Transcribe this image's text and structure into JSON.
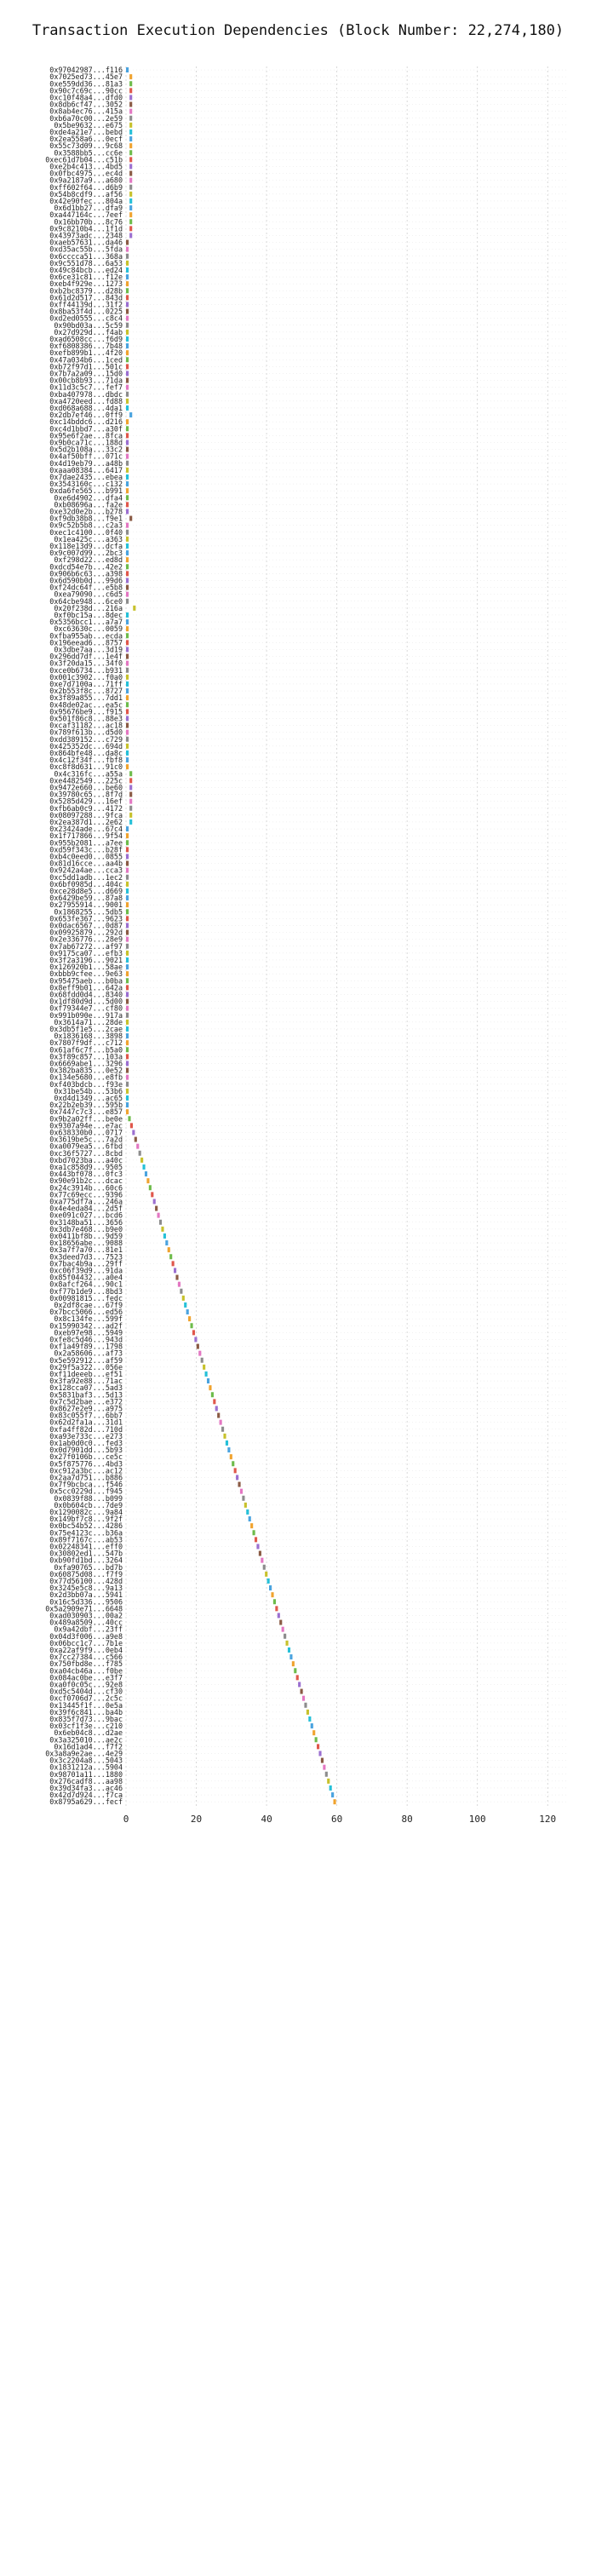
{
  "chart_data": {
    "type": "bar",
    "orientation": "horizontal",
    "title": "Transaction Execution Dependencies (Block Number: 22,274,180)",
    "xlim": [
      0,
      126
    ],
    "xticks": [
      0,
      20,
      40,
      60,
      80,
      100,
      120
    ],
    "grid": true,
    "colors": [
      "#4aa3df",
      "#f0a32f",
      "#6dbb4a",
      "#e0574b",
      "#9b6fd0",
      "#8a5a44",
      "#e377c2",
      "#8c8c8c",
      "#c7c12b",
      "#25c0d8"
    ],
    "transactions": [
      "0x97042987...f116",
      "0x7025ed73...45e7",
      "0xe559dd36...81a3",
      "0x90c7c69c...90cc",
      "0xc10f48a4...dfd0",
      "0x8db6cf47...3052",
      "0x8ab4ec76...415a",
      "0xb6a70c00...2e59",
      "0x5be9632...e675",
      "0xde4a21e7...bebd",
      "0x2ea558a6...0ecf",
      "0x55c73d09...9c68",
      "0x3588bb5...cc6e",
      "0xec61d7b04...c51b",
      "0xe2b4c413...4bd5",
      "0x0fbc4975...ec4d",
      "0x9a2187a9...a680",
      "0xff602f64...d6b9",
      "0x54b8cdf9...af56",
      "0x42e90fec...804a",
      "0x6d1bb27...dfa9",
      "0xa447164c...7eef",
      "0x16bb70b...8c76",
      "0x9c8210b4...1f1d",
      "0x43973adc...2348",
      "0xaeb57631...da46",
      "0xd35ac55b...5fda",
      "0x6cccca51...368a",
      "0x9c551d78...6a53",
      "0x49c84bcb...ed24",
      "0x6ce31c81...f12e",
      "0xeb4f929e...1273",
      "0xb2bc8379...d28b",
      "0x61d2d517...843d",
      "0xff44139d...31f2",
      "0x8ba53f4d...0225",
      "0xd2ed0555...c8c4",
      "0x90bd03a...5c59",
      "0x27d929d...f4ab",
      "0xad6508cc...f6d9",
      "0xf6808386...7b48",
      "0xefb899b1...4f20",
      "0x47a034b6...1ced",
      "0xb72f97d1...501c",
      "0x7b7a2a09...15d0",
      "0x00cb8b93...71da",
      "0x11d3c5c7...fef7",
      "0xba407978...dbdc",
      "0xa4720eed...fd88",
      "0xd068a688...4da1",
      "0x2db7ef46...0ff9",
      "0xc14bddc6...d216",
      "0xc4d1bbd7...a30f",
      "0x95e6f2ae...8fca",
      "0x9b0ca71c...188d",
      "0x5d2b108a...33c2",
      "0x4af50bff...071c",
      "0x4d19eb79...a48b",
      "0xaaa08384...6417",
      "0x7dae2435...ebea",
      "0x3543160c...c132",
      "0xda6fe565...b991",
      "0xe6d4902...dfa4",
      "0xb08696a...fa2e",
      "0xe32d0e2b...b278",
      "0xf9db38b8...f9e1",
      "0x9c52b5b8...c2a3",
      "0xec1c4100...0f40",
      "0x1ea425c...a363",
      "0x118e13d9...dcfa",
      "0x9c007d99...2bc3",
      "0xf298d22...ed8d",
      "0xdcd54e7b...42e2",
      "0x906b6c63...a398",
      "0x6d590b0d...99d6",
      "0xf24dc64f...e5b8",
      "0xea79090...c6d5",
      "0x64cbe948...6ce0",
      "0x20f238d...216a",
      "0xf0bc15a...8dec",
      "0x5356bcc1...a7a7",
      "0xc63630c...0059",
      "0xfba955ab...ecda",
      "0x196eead6...8757",
      "0x3dbe7aa...3d19",
      "0x296dd7df...1e4f",
      "0x3f20da15...34f0",
      "0xce0b6734...b931",
      "0x001c3902...f0a0",
      "0xe7d7100a...71ff",
      "0x2b553f8c...8727",
      "0x3f89a855...7dd1",
      "0x48de02ac...ea5c",
      "0x95676be9...f915",
      "0x501f86c8...88e3",
      "0xcaf31182...ac18",
      "0x789f613b...d5d0",
      "0xdd389152...c729",
      "0x425352dc...694d",
      "0x864bfe48...da8c",
      "0x4c12f34f...fbf8",
      "0xc8f8d631...91c0",
      "0x4c316fc...a55a",
      "0xe4482549...225c",
      "0x9472e660...be60",
      "0x39780c65...8f7d",
      "0x5285d429...16ef",
      "0xfb6ab0c9...4172",
      "0x08097288...9fca",
      "0x2ea387d1...2e62",
      "0x23424ade...67c4",
      "0x1f717866...9f54",
      "0x955b2081...a7ee",
      "0xd59f343c...b28f",
      "0xb4c0eed0...0855",
      "0x81d16cce...aa4b",
      "0x9242a4ae...cca3",
      "0xc5dd1adb...1ec2",
      "0x6bf0985d...404c",
      "0xce28d8e5...d669",
      "0x6429be59...87a8",
      "0x27955914...9001",
      "0x1868255...5db5",
      "0x653fe367...9623",
      "0x0dac6567...0d87",
      "0x09925879...292d",
      "0x2e336776...28e9",
      "0x7ab67272...af97",
      "0x9175ca07...efb3",
      "0x3f2a3196...9021",
      "0x126920b1...58ae",
      "0xbbb9cfee...9e63",
      "0x95475aeb...b0ba",
      "0x8eff9b01...642a",
      "0x68fdd0d4...8340",
      "0x1df80d9d...5d00",
      "0xf79344e7...cf80",
      "0x991b090e...917a",
      "0x3614a71...28de",
      "0x3db5f1e5...2cae",
      "0x1836168...3898",
      "0x7807f9df...c712",
      "0x61af6c7f...b5a0",
      "0x3f89c857...103a",
      "0x6669abe1...3296",
      "0x382ba835...0e52",
      "0x134e5680...e8fb",
      "0xf403bdcb...f93e",
      "0x31be54b...53b6",
      "0xd4d1349...ac65",
      "0x22b2eb39...595b",
      "0x7447c7c3...e857",
      "0x9b2a02ff...be0e",
      "0x9307a94e...e7ac",
      "0x638330b0...0717",
      "0x3619be5c...7a2d",
      "0xa0079ea5...6fbd",
      "0xc36f5727...8cbd",
      "0xbd7023ba...a40c",
      "0xa1c858d9...9505",
      "0x443bf078...0fc3",
      "0x90e91b2c...dcac",
      "0x24c3914b...60c6",
      "0x77c69ecc...9396",
      "0xa775df7a...246a",
      "0x4e4eda84...2d5f",
      "0xe091c027...bcd6",
      "0x3148ba51...3656",
      "0x3db7e468...b9e0",
      "0x0411bf8b...9d59",
      "0x18656abe...9088",
      "0x3a7f7a70...81e1",
      "0x3deed7d3...7523",
      "0x7bac4b9a...29ff",
      "0xc06f39d9...91da",
      "0x85f04432...a0e4",
      "0x8afcf264...90c1",
      "0xf77b1de9...8bd3",
      "0x00981815...fedc",
      "0x2df8cae...67f9",
      "0x7bcc5066...ed56",
      "0x8c134fe...599f",
      "0x15990342...ad2f",
      "0xeb97e98...5949",
      "0xfe8c5d46...943d",
      "0xf1a49f89...1798",
      "0x2a58606...af73",
      "0x5e592912...af59",
      "0x29f5a322...056e",
      "0xf11deeeb...ef51",
      "0x3fa92e88...71ac",
      "0x128cca07...5ad3",
      "0x5831baf3...5d13",
      "0x7c5d2bae...e372",
      "0x8627e2e9...a975",
      "0x83c055f7...6bb7",
      "0x62d2fa1a...31d1",
      "0xfa4ff82d...710d",
      "0xa93e733c...e273",
      "0x1ab0d0c0...fed3",
      "0x0d7901dd...5b93",
      "0x27f0106b...ce5c",
      "0x5f875776...4bd3",
      "0xc912a3bc...ac12",
      "0x2aa7d751...b886",
      "0x7f9bcbca...f546",
      "0x5cc0229d...f945",
      "0x0839f88...b099",
      "0x0b604cb...7de9",
      "0x1290082c...9a84",
      "0x149bf7c8...9f2f",
      "0x0bc54b52...4286",
      "0x75e4123c...b36a",
      "0x89f7167c...ab53",
      "0x02248341...eff0",
      "0x30802ed1...547b",
      "0xb90fd1bd...3264",
      "0xfa90765...bd7b",
      "0x60875d08...f7f9",
      "0x77d56100...428d",
      "0x3245e5c8...9a13",
      "0x2d3bb07a...5941",
      "0x16c5d336...9506",
      "0x5a2909e71...6648",
      "0xad030903...00a2",
      "0x489a8509...40cc",
      "0x9a42dbf...23ff",
      "0x04d3f006...a9e8",
      "0x06bcc1c7...7b1e",
      "0xa22af9f9...0eb4",
      "0x7cc27384...c566",
      "0x750fbd8e...f785",
      "0xa04cb46a...f0be",
      "0x084ac0be...e3f7",
      "0xa0f0c05c...92e8",
      "0xd5c5404d...cf30",
      "0xcf0706d7...2c5c",
      "0x13445f1f...0e5a",
      "0x39f6c841...ba4b",
      "0x835f7d73...9bac",
      "0x03cf1f3e...c210",
      "0x6eb04c8...d2ae",
      "0x3a325010...ae2c",
      "0x16d1ad4...f7f2",
      "0x3a8a9e2ae...4e29",
      "0x3c2204a8...5043",
      "0x1831212a...5904",
      "0x98701a11...1880",
      "0x276cadf8...aa98",
      "0x39d34fa3...ac46",
      "0x42d7d924...f7ca",
      "0x8795a629...fecf"
    ],
    "executions": [
      [
        0,
        1
      ],
      [
        1,
        2
      ],
      [
        1,
        2
      ],
      [
        1,
        2
      ],
      [
        1,
        2
      ],
      [
        1,
        2
      ],
      [
        1,
        2
      ],
      [
        1,
        2
      ],
      [
        1,
        2
      ],
      [
        1,
        2
      ],
      [
        1,
        2
      ],
      [
        1,
        2
      ],
      [
        1,
        2
      ],
      [
        1,
        2
      ],
      [
        1,
        2
      ],
      [
        1,
        2
      ],
      [
        1,
        2
      ],
      [
        1,
        2
      ],
      [
        1,
        2
      ],
      [
        1,
        2
      ],
      [
        1,
        2
      ],
      [
        1,
        2
      ],
      [
        1,
        2
      ],
      [
        1,
        2
      ],
      [
        1,
        2
      ],
      [
        0,
        1
      ],
      [
        0,
        1
      ],
      [
        0,
        1
      ],
      [
        0,
        1
      ],
      [
        0,
        1
      ],
      [
        0,
        1
      ],
      [
        0,
        1
      ],
      [
        0,
        1
      ],
      [
        0,
        1
      ],
      [
        0,
        1
      ],
      [
        0,
        1
      ],
      [
        0,
        1
      ],
      [
        0,
        1
      ],
      [
        0,
        1
      ],
      [
        0,
        1
      ],
      [
        0,
        1
      ],
      [
        0,
        1
      ],
      [
        0,
        1
      ],
      [
        0,
        1
      ],
      [
        0,
        1
      ],
      [
        0,
        1
      ],
      [
        0,
        1
      ],
      [
        0,
        1
      ],
      [
        0,
        1
      ],
      [
        0,
        1
      ],
      [
        1,
        2
      ],
      [
        0,
        1
      ],
      [
        0,
        1
      ],
      [
        0,
        1
      ],
      [
        0,
        1
      ],
      [
        0,
        1
      ],
      [
        0,
        1
      ],
      [
        0,
        1
      ],
      [
        0,
        1
      ],
      [
        0,
        1
      ],
      [
        0,
        1
      ],
      [
        0,
        1
      ],
      [
        0,
        1
      ],
      [
        0,
        1
      ],
      [
        0,
        1
      ],
      [
        1,
        2
      ],
      [
        0,
        1
      ],
      [
        0,
        1
      ],
      [
        0,
        1
      ],
      [
        0,
        1
      ],
      [
        0,
        1
      ],
      [
        0,
        1
      ],
      [
        0,
        1
      ],
      [
        0,
        1
      ],
      [
        0,
        1
      ],
      [
        0,
        1
      ],
      [
        0,
        1
      ],
      [
        0,
        1
      ],
      [
        2,
        3
      ],
      [
        0,
        1
      ],
      [
        0,
        1
      ],
      [
        0,
        1
      ],
      [
        0,
        1
      ],
      [
        0,
        1
      ],
      [
        0,
        1
      ],
      [
        0,
        1
      ],
      [
        0,
        1
      ],
      [
        0,
        1
      ],
      [
        0,
        1
      ],
      [
        0,
        1
      ],
      [
        0,
        1
      ],
      [
        0,
        1
      ],
      [
        0,
        1
      ],
      [
        0,
        1
      ],
      [
        0,
        1
      ],
      [
        0,
        1
      ],
      [
        0,
        1
      ],
      [
        0,
        1
      ],
      [
        0,
        1
      ],
      [
        0,
        1
      ],
      [
        0,
        1
      ],
      [
        0,
        1
      ],
      [
        1,
        2
      ],
      [
        1,
        2
      ],
      [
        1,
        2
      ],
      [
        1,
        2
      ],
      [
        1,
        2
      ],
      [
        1,
        2
      ],
      [
        1,
        2
      ],
      [
        1,
        2
      ],
      [
        0,
        1
      ],
      [
        0,
        1
      ],
      [
        0,
        1
      ],
      [
        0,
        1
      ],
      [
        0,
        1
      ],
      [
        0,
        1
      ],
      [
        0,
        1
      ],
      [
        0,
        1
      ],
      [
        0,
        1
      ],
      [
        0,
        1
      ],
      [
        0,
        1
      ],
      [
        0,
        1
      ],
      [
        0,
        1
      ],
      [
        0,
        1
      ],
      [
        0,
        1
      ],
      [
        0,
        1
      ],
      [
        0,
        1
      ],
      [
        0,
        1
      ],
      [
        0,
        1
      ],
      [
        0,
        1
      ],
      [
        0,
        1
      ],
      [
        0,
        1
      ],
      [
        0,
        1
      ],
      [
        0,
        1
      ],
      [
        0,
        1
      ],
      [
        0,
        1
      ],
      [
        0,
        1
      ],
      [
        0,
        1
      ],
      [
        0,
        1
      ],
      [
        0,
        1
      ],
      [
        0,
        1
      ],
      [
        0,
        1
      ],
      [
        0,
        1
      ],
      [
        0,
        1
      ],
      [
        0,
        1
      ],
      [
        0,
        1
      ],
      [
        0,
        1
      ],
      [
        0,
        1
      ],
      [
        0,
        1
      ],
      [
        0,
        1
      ],
      [
        0,
        1
      ],
      [
        0,
        1
      ],
      [
        0,
        1
      ],
      [
        0,
        1
      ],
      [
        0,
        1
      ],
      [
        0,
        1
      ],
      [
        0,
        1
      ],
      [
        0,
        1
      ],
      [
        0,
        1
      ],
      [
        0,
        1
      ],
      [
        0,
        1
      ],
      [
        0,
        1
      ],
      [
        0,
        1
      ],
      [
        0,
        1
      ],
      [
        0,
        1
      ],
      [
        0,
        1
      ],
      [
        0,
        1
      ],
      [
        0,
        1
      ],
      [
        0,
        1
      ],
      [
        0,
        1
      ],
      [
        0,
        1
      ],
      [
        0,
        1
      ],
      [
        0,
        1
      ],
      [
        0,
        1
      ],
      [
        0,
        1
      ],
      [
        0,
        1
      ],
      [
        0,
        1
      ],
      [
        0,
        1
      ],
      [
        0,
        1
      ],
      [
        0,
        1
      ],
      [
        0,
        1
      ],
      [
        0,
        1
      ],
      [
        0,
        1
      ],
      [
        0,
        1
      ],
      [
        0,
        1
      ],
      [
        0,
        1
      ],
      [
        0,
        1
      ],
      [
        0,
        1
      ],
      [
        0,
        1
      ],
      [
        0,
        1
      ],
      [
        0,
        1
      ],
      [
        0,
        1
      ],
      [
        0,
        1
      ],
      [
        0,
        1
      ],
      [
        0,
        1
      ],
      [
        0,
        1
      ],
      [
        0,
        1
      ],
      [
        0,
        1
      ],
      [
        0,
        1
      ],
      [
        0,
        1
      ],
      [
        0,
        1
      ],
      [
        0,
        1
      ],
      [
        0,
        1
      ],
      [
        0,
        1
      ],
      [
        0,
        1
      ],
      [
        0,
        1
      ],
      [
        0,
        1
      ],
      [
        0,
        1
      ],
      [
        0,
        1
      ],
      [
        0,
        1
      ],
      [
        0,
        1
      ],
      [
        0,
        1
      ],
      [
        0,
        1
      ],
      [
        0,
        1
      ],
      [
        0,
        1
      ],
      [
        0,
        1
      ],
      [
        0,
        1
      ],
      [
        0,
        1
      ],
      [
        0,
        1
      ],
      [
        0,
        1
      ],
      [
        0,
        1
      ],
      [
        0,
        1
      ],
      [
        0,
        1
      ],
      [
        0,
        1
      ],
      [
        0,
        1
      ],
      [
        0,
        1
      ],
      [
        0,
        1
      ],
      [
        0,
        1
      ],
      [
        0,
        1
      ],
      [
        0,
        1
      ],
      [
        0,
        1
      ],
      [
        0,
        1
      ],
      [
        0,
        1
      ],
      [
        0,
        1
      ],
      [
        0,
        1
      ],
      [
        0,
        1
      ],
      [
        0,
        1
      ],
      [
        0,
        1
      ],
      [
        0,
        1
      ],
      [
        0,
        1
      ],
      [
        0,
        1
      ],
      [
        0,
        1
      ],
      [
        0,
        1
      ],
      [
        0,
        1
      ],
      [
        0,
        1
      ],
      [
        0,
        1
      ],
      [
        0,
        1
      ],
      [
        0,
        1
      ],
      [
        0,
        1
      ],
      [
        0,
        1
      ],
      [
        0,
        1
      ],
      [
        0,
        1
      ],
      [
        0,
        1
      ],
      [
        0,
        1
      ],
      [
        0,
        1
      ],
      [
        0,
        1
      ],
      [
        0,
        1
      ],
      [
        0,
        1
      ],
      [
        0,
        1
      ],
      [
        0,
        1
      ],
      [
        0,
        1
      ],
      [
        0,
        1
      ],
      [
        0,
        1
      ],
      [
        0,
        1
      ],
      [
        0,
        1
      ],
      [
        0,
        1
      ],
      [
        0,
        1
      ],
      [
        0,
        1
      ],
      [
        0,
        1
      ],
      [
        0,
        1
      ],
      [
        0,
        1
      ],
      [
        0,
        1
      ],
      [
        0,
        1
      ],
      [
        0,
        1
      ],
      [
        0,
        1
      ],
      [
        0,
        1
      ],
      [
        0,
        1
      ],
      [
        0,
        1
      ],
      [
        0,
        1
      ],
      [
        0,
        1
      ],
      [
        0,
        1
      ],
      [
        0,
        1
      ],
      [
        0,
        1
      ],
      [
        0,
        1
      ],
      [
        0,
        1
      ],
      [
        0,
        1
      ],
      [
        0,
        1
      ],
      [
        0,
        1
      ],
      [
        0,
        1
      ],
      [
        0,
        1
      ],
      [
        0,
        1
      ],
      [
        0,
        1
      ],
      [
        0,
        1
      ],
      [
        0,
        1
      ],
      [
        0,
        1
      ],
      [
        0,
        1
      ],
      [
        0,
        1
      ],
      [
        0,
        1
      ],
      [
        0,
        1
      ],
      [
        0,
        1
      ],
      [
        0,
        1
      ],
      [
        0,
        1
      ],
      [
        0,
        1
      ],
      [
        0,
        1
      ],
      [
        0,
        1
      ],
      [
        0,
        1
      ],
      [
        0,
        1
      ],
      [
        0,
        1
      ],
      [
        0,
        1
      ],
      [
        0,
        1
      ],
      [
        0,
        1
      ],
      [
        0,
        1
      ],
      [
        0,
        1
      ],
      [
        0,
        1
      ],
      [
        0,
        1
      ],
      [
        0,
        1
      ],
      [
        0,
        1
      ],
      [
        0,
        1
      ],
      [
        0,
        1
      ],
      [
        0,
        1
      ],
      [
        0,
        1
      ],
      [
        0,
        1
      ],
      [
        0,
        1
      ],
      [
        0,
        1
      ],
      [
        0,
        1
      ],
      [
        0,
        1
      ],
      [
        0,
        1
      ],
      [
        0,
        1
      ],
      [
        0,
        1
      ],
      [
        0,
        1
      ],
      [
        0,
        1
      ],
      [
        0,
        1
      ]
    ]
  }
}
